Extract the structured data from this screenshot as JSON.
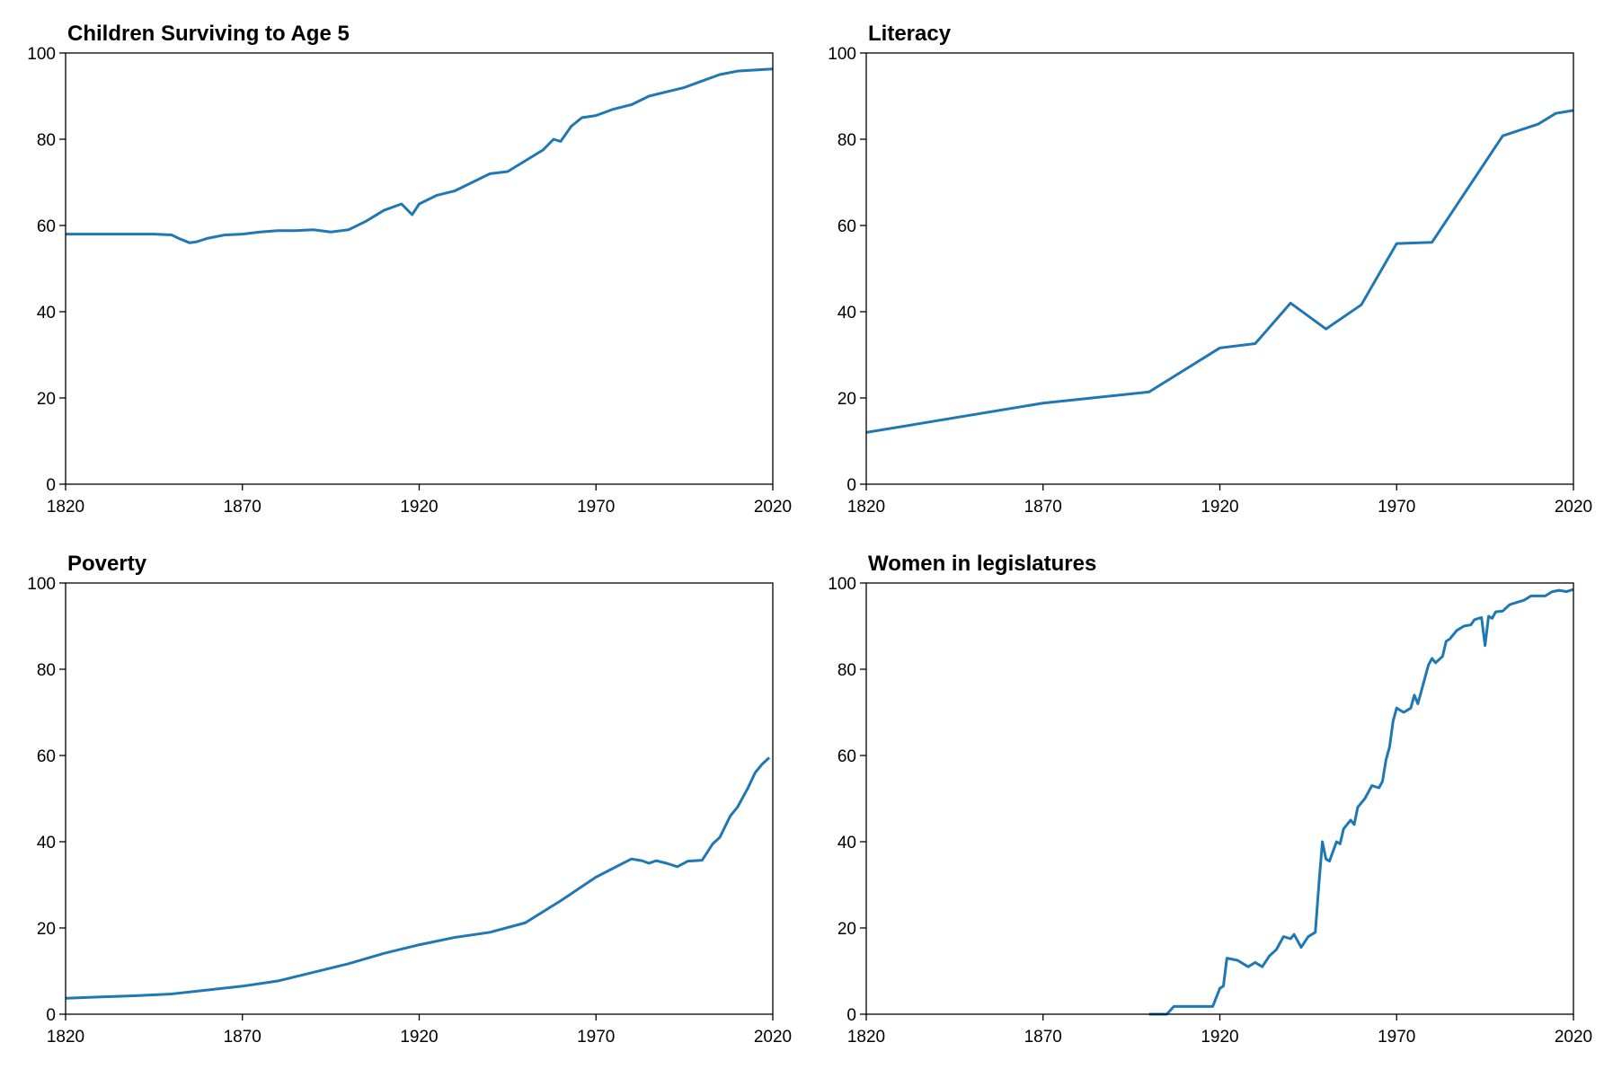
{
  "chart_data": [
    {
      "type": "line",
      "title": "Children Surviving to Age 5",
      "color": "#1f77b4",
      "x": [
        1820,
        1830,
        1840,
        1845,
        1850,
        1852,
        1855,
        1857,
        1860,
        1865,
        1870,
        1875,
        1880,
        1885,
        1890,
        1895,
        1900,
        1905,
        1910,
        1915,
        1918,
        1920,
        1925,
        1930,
        1935,
        1940,
        1945,
        1950,
        1955,
        1958,
        1960,
        1963,
        1966,
        1970,
        1975,
        1980,
        1985,
        1990,
        1995,
        2000,
        2005,
        2010,
        2020
      ],
      "values": [
        58,
        58,
        58,
        58,
        57.8,
        57,
        56,
        56.2,
        57,
        57.8,
        58,
        58.5,
        58.8,
        58.8,
        59,
        58.5,
        59,
        61,
        63.5,
        65,
        62.5,
        65,
        67,
        68,
        70,
        72,
        72.5,
        75,
        77.5,
        80,
        79.5,
        83,
        85,
        85.5,
        87,
        88,
        90,
        91,
        92,
        93.5,
        95,
        95.8,
        96.3
      ],
      "xlim": [
        1820,
        2020
      ],
      "xticks": [
        1820,
        1870,
        1920,
        1970,
        2020
      ],
      "ylim": [
        0,
        100
      ],
      "yticks": [
        0,
        20,
        40,
        60,
        80,
        100
      ]
    },
    {
      "type": "line",
      "title": "Literacy",
      "color": "#1f77b4",
      "x": [
        1820,
        1870,
        1900,
        1920,
        1930,
        1940,
        1950,
        1960,
        1970,
        1980,
        2000,
        2010,
        2015,
        2020
      ],
      "values": [
        12,
        18.8,
        21.4,
        31.6,
        32.6,
        42,
        36,
        41.6,
        55.8,
        56.1,
        80.8,
        83.5,
        86,
        86.7
      ],
      "xlim": [
        1820,
        2020
      ],
      "xticks": [
        1820,
        1870,
        1920,
        1970,
        2020
      ],
      "ylim": [
        0,
        100
      ],
      "yticks": [
        0,
        20,
        40,
        60,
        80,
        100
      ]
    },
    {
      "type": "line",
      "title": "Poverty",
      "color": "#1f77b4",
      "x": [
        1820,
        1830,
        1840,
        1850,
        1860,
        1870,
        1880,
        1890,
        1900,
        1910,
        1920,
        1930,
        1940,
        1950,
        1960,
        1970,
        1980,
        1983,
        1985,
        1987,
        1990,
        1993,
        1996,
        2000,
        2003,
        2005,
        2008,
        2010,
        2013,
        2015,
        2017,
        2019
      ],
      "values": [
        3.7,
        4,
        4.3,
        4.7,
        5.6,
        6.5,
        7.7,
        9.7,
        11.7,
        14.1,
        16.1,
        17.8,
        19,
        21.2,
        26.3,
        31.8,
        36,
        35.6,
        35,
        35.6,
        35,
        34.2,
        35.5,
        35.7,
        39.5,
        41,
        46,
        48,
        52.5,
        56,
        58,
        59.5
      ],
      "xlim": [
        1820,
        2020
      ],
      "xticks": [
        1820,
        1870,
        1920,
        1970,
        2020
      ],
      "ylim": [
        0,
        100
      ],
      "yticks": [
        0,
        20,
        40,
        60,
        80,
        100
      ]
    },
    {
      "type": "line",
      "title": "Women in legislatures",
      "color": "#1f77b4",
      "x": [
        1900,
        1905,
        1907,
        1918,
        1920,
        1921,
        1922,
        1925,
        1928,
        1930,
        1932,
        1934,
        1936,
        1938,
        1940,
        1941,
        1943,
        1945,
        1947,
        1948,
        1949,
        1950,
        1951,
        1953,
        1954,
        1955,
        1957,
        1958,
        1959,
        1961,
        1963,
        1965,
        1966,
        1967,
        1968,
        1969,
        1970,
        1972,
        1974,
        1975,
        1976,
        1977,
        1979,
        1980,
        1981,
        1983,
        1984,
        1985,
        1987,
        1989,
        1991,
        1992,
        1994,
        1995,
        1996,
        1997,
        1998,
        2000,
        2002,
        2004,
        2006,
        2008,
        2012,
        2014,
        2016,
        2018,
        2020
      ],
      "values": [
        0,
        0,
        1.8,
        1.8,
        6,
        6.5,
        13,
        12.5,
        11,
        12,
        11,
        13.5,
        15,
        18,
        17.5,
        18.5,
        15.5,
        18,
        19,
        30,
        40,
        36,
        35.5,
        40,
        39.5,
        43,
        45,
        44,
        48,
        50,
        53,
        52.5,
        54,
        59,
        62,
        68,
        71,
        70,
        71,
        74,
        72,
        75,
        81,
        82.5,
        81.5,
        83,
        86.5,
        87,
        89,
        90,
        90.3,
        91.5,
        92,
        85.5,
        92.3,
        91.8,
        93.3,
        93.5,
        95,
        95.5,
        96,
        97,
        97,
        98,
        98.3,
        98,
        98.5
      ],
      "xlim": [
        1820,
        2020
      ],
      "xticks": [
        1820,
        1870,
        1920,
        1970,
        2020
      ],
      "ylim": [
        0,
        100
      ],
      "yticks": [
        0,
        20,
        40,
        60,
        80,
        100
      ]
    }
  ]
}
